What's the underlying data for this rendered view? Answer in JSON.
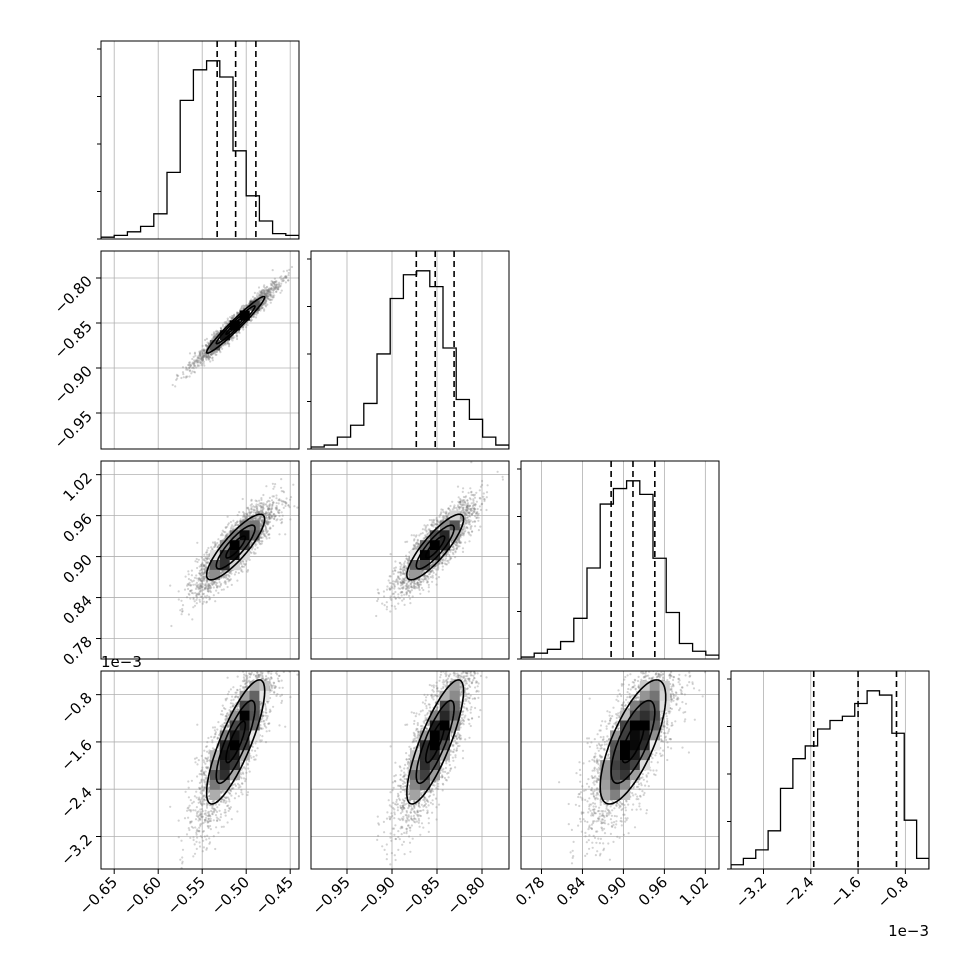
{
  "chart_data": {
    "type": "corner",
    "grid": true,
    "params": [
      {
        "range": [
          -0.665,
          -0.44
        ],
        "ticks": [
          -0.65,
          -0.6,
          -0.55,
          -0.5,
          -0.45
        ],
        "tick_labels": [
          "−0.65",
          "−0.60",
          "−0.55",
          "−0.50",
          "−0.45"
        ],
        "quantiles": [
          -0.533,
          -0.512,
          -0.489
        ],
        "hist": [
          1,
          2,
          4,
          7,
          14,
          37,
          77,
          94,
          99,
          90,
          49,
          24,
          10,
          3,
          2
        ]
      },
      {
        "range": [
          -0.99,
          -0.77
        ],
        "ticks": [
          -0.95,
          -0.9,
          -0.85,
          -0.8
        ],
        "tick_labels": [
          "−0.95",
          "−0.90",
          "−0.85",
          "−0.80"
        ],
        "quantiles": [
          -0.873,
          -0.852,
          -0.831
        ],
        "hist": [
          1,
          2,
          6,
          12,
          23,
          48,
          76,
          88,
          90,
          82,
          51,
          25,
          15,
          6,
          2
        ]
      },
      {
        "range": [
          0.75,
          1.04
        ],
        "ticks": [
          0.78,
          0.84,
          0.9,
          0.96,
          1.02
        ],
        "tick_labels": [
          "0.78",
          "0.84",
          "0.90",
          "0.96",
          "1.02"
        ],
        "quantiles": [
          0.882,
          0.914,
          0.946
        ],
        "hist": [
          1,
          3,
          5,
          9,
          21,
          47,
          80,
          88,
          92,
          85,
          52,
          24,
          8,
          4,
          2
        ]
      },
      {
        "range": [
          -3.75,
          -0.4
        ],
        "scale_label": "1e−3",
        "ticks": [
          -3.2,
          -2.4,
          -1.6,
          -0.8
        ],
        "tick_labels": [
          "−3.2",
          "−2.4",
          "−1.6",
          "−0.8"
        ],
        "quantiles": [
          -2.35,
          -1.6,
          -0.95
        ],
        "hist": [
          2,
          5,
          9,
          18,
          38,
          52,
          58,
          66,
          70,
          72,
          78,
          84,
          82,
          64,
          23,
          5
        ]
      }
    ],
    "correlations": [
      {
        "row": 1,
        "col": 0,
        "rho": 0.97
      },
      {
        "row": 2,
        "col": 0,
        "rho": 0.85
      },
      {
        "row": 2,
        "col": 1,
        "rho": 0.85
      },
      {
        "row": 3,
        "col": 0,
        "rho": 0.82
      },
      {
        "row": 3,
        "col": 1,
        "rho": 0.82
      },
      {
        "row": 3,
        "col": 2,
        "rho": 0.72
      }
    ],
    "colors": {
      "points": "#808080",
      "lines": "#000000",
      "grid": "#b0b0b0"
    }
  }
}
